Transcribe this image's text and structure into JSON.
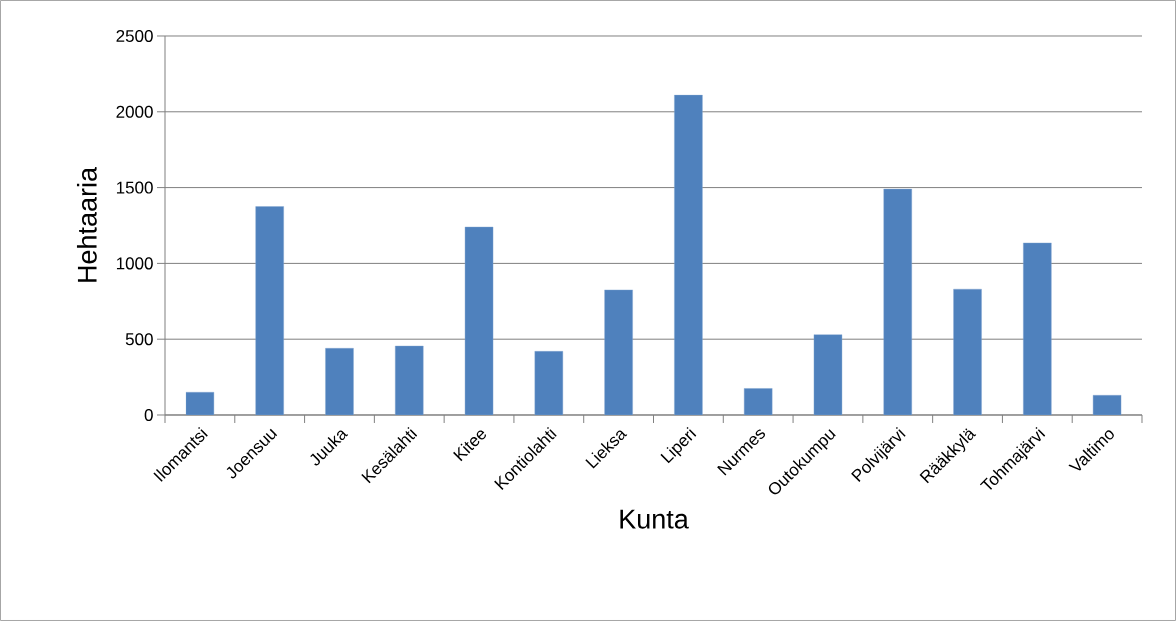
{
  "chart_data": {
    "type": "bar",
    "xlabel": "Kunta",
    "ylabel": "Hehtaaria",
    "categories": [
      "Ilomantsi",
      "Joensuu",
      "Juuka",
      "Kesälahti",
      "Kitee",
      "Kontiolahti",
      "Lieksa",
      "Liperi",
      "Nurmes",
      "Outokumpu",
      "Polvijärvi",
      "Rääkkylä",
      "Tohmajärvi",
      "Valtimo"
    ],
    "values": [
      150,
      1375,
      440,
      455,
      1240,
      420,
      825,
      2110,
      175,
      530,
      1490,
      830,
      1135,
      130
    ],
    "color": "#4f81bd",
    "ylim": [
      0,
      2500
    ],
    "yticks": [
      0,
      500,
      1000,
      1500,
      2000,
      2500
    ],
    "grid": "y"
  }
}
